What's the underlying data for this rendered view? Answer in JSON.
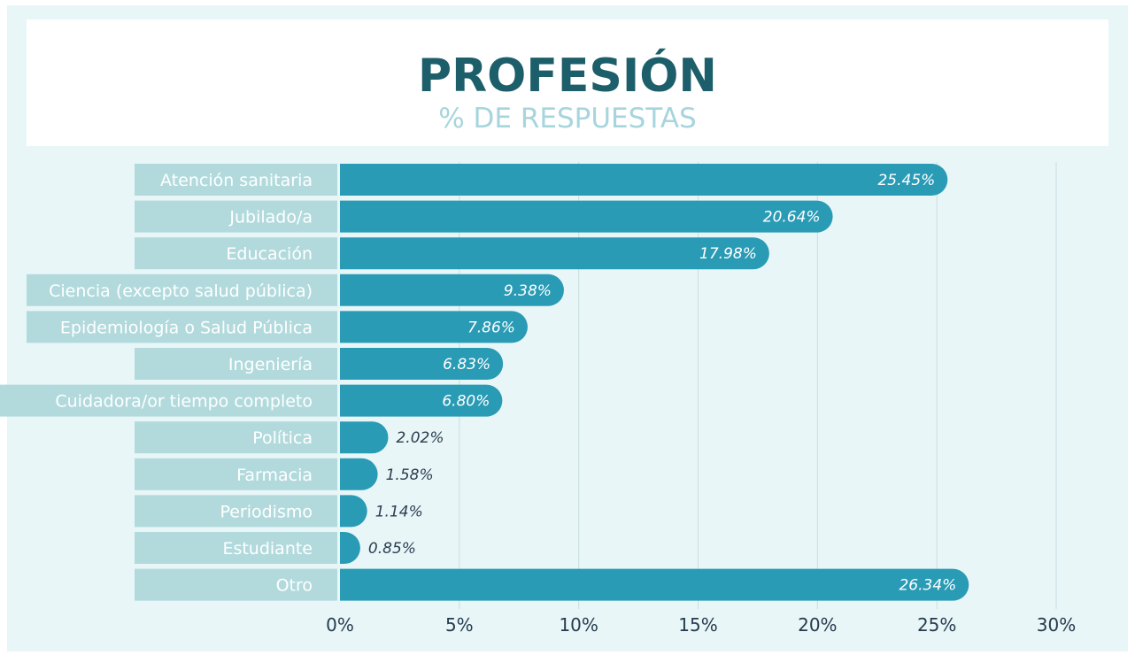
{
  "chart_data": {
    "type": "bar",
    "orientation": "horizontal",
    "title": "PROFESIÓN",
    "subtitle": "% DE RESPUESTAS",
    "categories": [
      "Atención sanitaria",
      "Jubilado/a",
      "Educación",
      "Ciencia (excepto salud pública)",
      "Epidemiología o Salud Pública",
      "Ingeniería",
      "Cuidadora/or tiempo completo",
      "Política",
      "Farmacia",
      "Periodismo",
      "Estudiante",
      "Otro"
    ],
    "values": [
      25.45,
      20.64,
      17.98,
      9.38,
      7.86,
      6.83,
      6.8,
      2.02,
      1.58,
      1.14,
      0.85,
      26.34
    ],
    "value_labels": [
      "25.45%",
      "20.64%",
      "17.98%",
      "9.38%",
      "7.86%",
      "6.83%",
      "6.80%",
      "2.02%",
      "1.58%",
      "1.14%",
      "0.85%",
      "26.34%"
    ],
    "xlim": [
      0,
      30
    ],
    "xticks": [
      0,
      5,
      10,
      15,
      20,
      25,
      30
    ],
    "xtick_labels": [
      "0%",
      "5%",
      "10%",
      "15%",
      "20%",
      "25%",
      "30%"
    ],
    "grid": "vertical",
    "colors": {
      "bar": "#2a9bb5",
      "label_box": "#b2dadd",
      "title": "#1c5e6a",
      "subtitle": "#a7d5dd",
      "background": "#e8f6f8"
    }
  }
}
